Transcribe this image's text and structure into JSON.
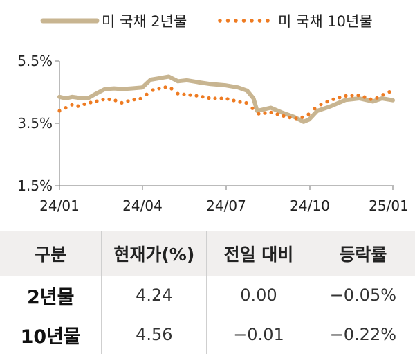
{
  "chart_data": {
    "type": "line",
    "legend": [
      "미 국채 2년물",
      "미 국채 10년물"
    ],
    "legend_position": "top",
    "x_ticks": [
      "24/01",
      "24/04",
      "24/07",
      "24/10",
      "25/01"
    ],
    "y_ticks": [
      "5.5%",
      "3.5%",
      "1.5%"
    ],
    "ylim": [
      1.5,
      5.5
    ],
    "colors": {
      "two_year": "#c8b591",
      "ten_year": "#ee7b22"
    },
    "series": [
      {
        "name": "미 국채 2년물",
        "style": "thick-line",
        "x": [
          "2024-01-01",
          "2024-01-08",
          "2024-01-15",
          "2024-01-22",
          "2024-02-01",
          "2024-02-10",
          "2024-02-20",
          "2024-03-01",
          "2024-03-10",
          "2024-03-20",
          "2024-04-01",
          "2024-04-10",
          "2024-04-20",
          "2024-04-30",
          "2024-05-10",
          "2024-05-20",
          "2024-06-01",
          "2024-06-15",
          "2024-07-01",
          "2024-07-15",
          "2024-07-25",
          "2024-08-01",
          "2024-08-05",
          "2024-08-20",
          "2024-09-01",
          "2024-09-15",
          "2024-09-25",
          "2024-10-01",
          "2024-10-10",
          "2024-10-25",
          "2024-11-10",
          "2024-11-25",
          "2024-12-10",
          "2024-12-20",
          "2025-01-01"
        ],
        "values": [
          4.35,
          4.3,
          4.35,
          4.32,
          4.3,
          4.45,
          4.6,
          4.62,
          4.6,
          4.62,
          4.65,
          4.9,
          4.95,
          5.0,
          4.85,
          4.88,
          4.82,
          4.76,
          4.72,
          4.65,
          4.55,
          4.3,
          3.9,
          4.0,
          3.85,
          3.7,
          3.55,
          3.62,
          3.9,
          4.05,
          4.25,
          4.3,
          4.2,
          4.3,
          4.24
        ]
      },
      {
        "name": "미 국채 10년물",
        "style": "dotted",
        "x": [
          "2024-01-01",
          "2024-01-08",
          "2024-01-15",
          "2024-01-22",
          "2024-02-01",
          "2024-02-10",
          "2024-02-20",
          "2024-03-01",
          "2024-03-10",
          "2024-03-20",
          "2024-04-01",
          "2024-04-10",
          "2024-04-20",
          "2024-04-30",
          "2024-05-10",
          "2024-05-20",
          "2024-06-01",
          "2024-06-15",
          "2024-07-01",
          "2024-07-15",
          "2024-07-25",
          "2024-08-01",
          "2024-08-05",
          "2024-08-20",
          "2024-09-01",
          "2024-09-15",
          "2024-09-25",
          "2024-10-01",
          "2024-10-10",
          "2024-10-25",
          "2024-11-10",
          "2024-11-25",
          "2024-12-10",
          "2024-12-20",
          "2025-01-01"
        ],
        "values": [
          3.9,
          4.0,
          4.1,
          4.05,
          4.15,
          4.2,
          4.28,
          4.25,
          4.15,
          4.25,
          4.3,
          4.55,
          4.62,
          4.68,
          4.45,
          4.42,
          4.38,
          4.3,
          4.3,
          4.2,
          4.15,
          3.95,
          3.8,
          3.85,
          3.75,
          3.65,
          3.7,
          3.8,
          4.05,
          4.25,
          4.38,
          4.4,
          4.25,
          4.4,
          4.56
        ]
      }
    ]
  },
  "table": {
    "headers": [
      "구분",
      "현재가(%)",
      "전일 대비",
      "등락률"
    ],
    "rows": [
      [
        "2년물",
        "4.24",
        "0.00",
        "−0.05%"
      ],
      [
        "10년물",
        "4.56",
        "−0.01",
        "−0.22%"
      ]
    ]
  }
}
